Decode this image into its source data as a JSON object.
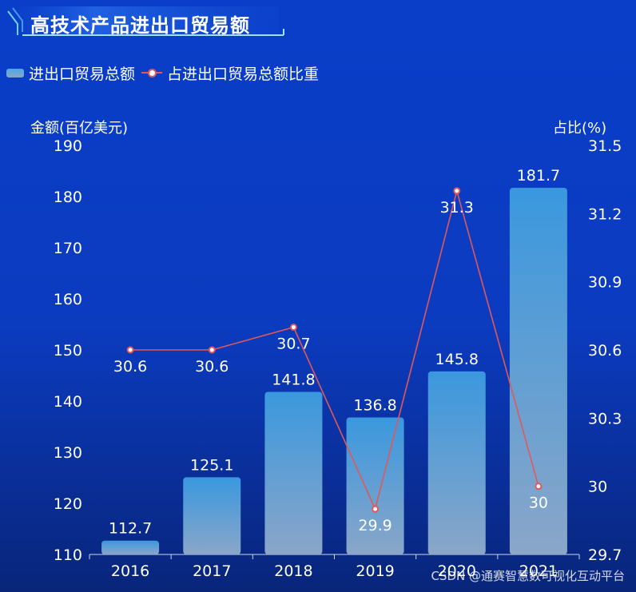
{
  "colors": {
    "bar_top": "#3a98de",
    "bar_bottom": "#8aa6c8",
    "line": "#e0585a",
    "background": "#0a3ec9"
  },
  "chart_data": {
    "type": "bar",
    "title": "高技术产品进出口贸易额",
    "categories": [
      "2016",
      "2017",
      "2018",
      "2019",
      "2020",
      "2021"
    ],
    "series": [
      {
        "name": "进出口贸易总额",
        "type": "bar",
        "axis": "left",
        "values": [
          112.7,
          125.1,
          141.8,
          136.8,
          145.8,
          181.7
        ]
      },
      {
        "name": "占进出口贸易总额比重",
        "type": "line",
        "axis": "right",
        "values": [
          30.6,
          30.6,
          30.7,
          29.9,
          31.3,
          30
        ]
      }
    ],
    "ylabel": "金额(百亿美元)",
    "ylim": [
      110,
      190
    ],
    "yticks": [
      "110",
      "120",
      "130",
      "140",
      "150",
      "160",
      "170",
      "180",
      "190"
    ],
    "y2label": "占比(%)",
    "y2lim": [
      29.7,
      31.5
    ],
    "y2ticks": [
      "29.7",
      "30",
      "30.3",
      "30.6",
      "30.9",
      "31.2",
      "31.5"
    ],
    "legend": "top-left",
    "grid": false
  },
  "watermark": "CSDN @通赛智慧数可视化互动平台"
}
